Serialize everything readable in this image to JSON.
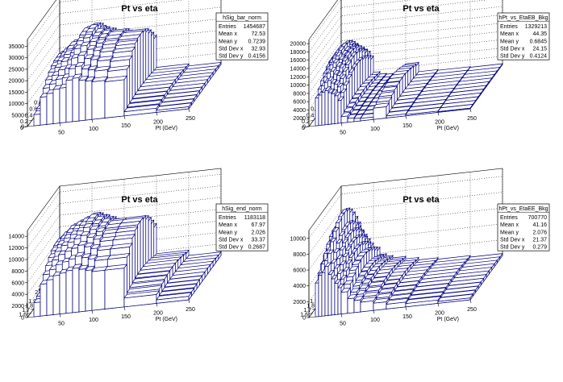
{
  "chart_data": [
    {
      "type": "lego3d",
      "title": "Pt vs eta",
      "xlabel": "Pt (GeV)",
      "ylabel": "",
      "zlabel": "",
      "xlim": [
        0,
        250
      ],
      "ylim": [
        0,
        1.4
      ],
      "zlim": [
        0,
        38000
      ],
      "x_ticks": [
        "50",
        "100",
        "150",
        "200",
        "250"
      ],
      "y_ticks": [
        "0",
        "0.2",
        "0.4",
        "0.6",
        "0.8",
        "1",
        "1.2",
        "1.4"
      ],
      "z_ticks": [
        "0",
        "5000",
        "10000",
        "15000",
        "20000",
        "25000",
        "30000",
        "35000"
      ],
      "grid": true,
      "color": "#00007f",
      "x_bins": [
        10,
        20,
        30,
        40,
        50,
        60,
        70,
        80,
        90,
        100,
        120,
        150,
        200,
        250
      ],
      "profile": [
        8000,
        20000,
        22000,
        24500,
        25000,
        30000,
        31000,
        29000,
        28000,
        27000,
        26000,
        3000,
        1500
      ],
      "stats": {
        "name": "hSig_bar_norm",
        "rows": [
          [
            "Entries",
            "1454687"
          ],
          [
            "Mean x",
            "72.53"
          ],
          [
            "Mean y",
            "0.7239"
          ],
          [
            "Std Dev x",
            "32.93"
          ],
          [
            "Std Dev y",
            "0.4156"
          ]
        ]
      }
    },
    {
      "type": "lego3d",
      "title": "Pt vs eta",
      "xlabel": "Pt (GeV)",
      "ylabel": "",
      "zlabel": "",
      "xlim": [
        0,
        250
      ],
      "ylim": [
        0,
        1.4
      ],
      "zlim": [
        0,
        21000
      ],
      "x_ticks": [
        "50",
        "100",
        "150",
        "200",
        "250"
      ],
      "y_ticks": [
        "0",
        "0.2",
        "0.4",
        "0.6",
        "0.8",
        "1",
        "1.2",
        "1.4"
      ],
      "z_ticks": [
        "0",
        "2000",
        "4000",
        "6000",
        "8000",
        "10000",
        "12000",
        "14000",
        "16000",
        "18000",
        "20000"
      ],
      "grid": true,
      "color": "#00007f",
      "x_bins": [
        10,
        15,
        20,
        25,
        30,
        35,
        40,
        45,
        50,
        60,
        70,
        80,
        100,
        120,
        150,
        200,
        250
      ],
      "profile": [
        11000,
        12000,
        13000,
        13500,
        12500,
        12000,
        11000,
        9000,
        2500,
        1500,
        1200,
        1000,
        4500,
        800,
        500,
        300
      ],
      "stats": {
        "name": "hPt_vs_EtaEB_Bkg",
        "rows": [
          [
            "Entries",
            "1329213"
          ],
          [
            "Mean x",
            "44.35"
          ],
          [
            "Mean y",
            "0.6845"
          ],
          [
            "Std Dev x",
            "24.15"
          ],
          [
            "Std Dev y",
            "0.4124"
          ]
        ]
      }
    },
    {
      "type": "lego3d",
      "title": "Pt vs eta",
      "xlabel": "Pt (GeV)",
      "ylabel": "",
      "zlabel": "",
      "xlim": [
        0,
        250
      ],
      "ylim": [
        1.5,
        2.5
      ],
      "zlim": [
        0,
        15000
      ],
      "x_ticks": [
        "50",
        "100",
        "150",
        "200",
        "250"
      ],
      "y_ticks": [
        "1.6",
        "1.7",
        "1.8",
        "1.9",
        "2",
        "2.1",
        "2.2",
        "2.3",
        "2.4",
        "2.5"
      ],
      "z_ticks": [
        "0",
        "2000",
        "4000",
        "6000",
        "8000",
        "10000",
        "12000",
        "14000"
      ],
      "grid": true,
      "color": "#00007f",
      "x_bins": [
        10,
        20,
        30,
        40,
        50,
        60,
        70,
        80,
        90,
        100,
        120,
        150,
        200,
        250
      ],
      "profile": [
        4000,
        9000,
        10000,
        11000,
        11500,
        12000,
        12500,
        12000,
        11500,
        11000,
        11000,
        2500,
        1000
      ],
      "stats": {
        "name": "hSig_end_norm",
        "rows": [
          [
            "Entries",
            "1183118"
          ],
          [
            "Mean x",
            "67.97"
          ],
          [
            "Mean y",
            "2.026"
          ],
          [
            "Std Dev x",
            "33.37"
          ],
          [
            "Std Dev y",
            "0.2687"
          ]
        ]
      }
    },
    {
      "type": "lego3d",
      "title": "Pt vs eta",
      "xlabel": "Pt (GeV)",
      "ylabel": "",
      "zlabel": "",
      "xlim": [
        0,
        250
      ],
      "ylim": [
        1.5,
        2.5
      ],
      "zlim": [
        0,
        11000
      ],
      "x_ticks": [
        "50",
        "100",
        "150",
        "200",
        "250"
      ],
      "y_ticks": [
        "1.6",
        "1.7",
        "1.8",
        "1.9",
        "2",
        "2.1",
        "2.2",
        "2.3",
        "2.4",
        "2.5"
      ],
      "z_ticks": [
        "0",
        "2000",
        "4000",
        "6000",
        "8000",
        "10000"
      ],
      "grid": true,
      "color": "#00007f",
      "x_bins": [
        10,
        15,
        20,
        25,
        30,
        35,
        40,
        45,
        50,
        60,
        70,
        80,
        100,
        120,
        150,
        200,
        250
      ],
      "profile": [
        7000,
        8500,
        9000,
        10200,
        8500,
        7500,
        6500,
        5500,
        4500,
        3000,
        2500,
        2000,
        1500,
        1000,
        700,
        400
      ],
      "stats": {
        "name": "hPt_vs_EtaEE_Bkg",
        "rows": [
          [
            "Entries",
            "700770"
          ],
          [
            "Mean x",
            "41.16"
          ],
          [
            "Mean y",
            "2.076"
          ],
          [
            "Std Dev x",
            "21.37"
          ],
          [
            "Std Dev y",
            "0.279"
          ]
        ]
      }
    }
  ]
}
